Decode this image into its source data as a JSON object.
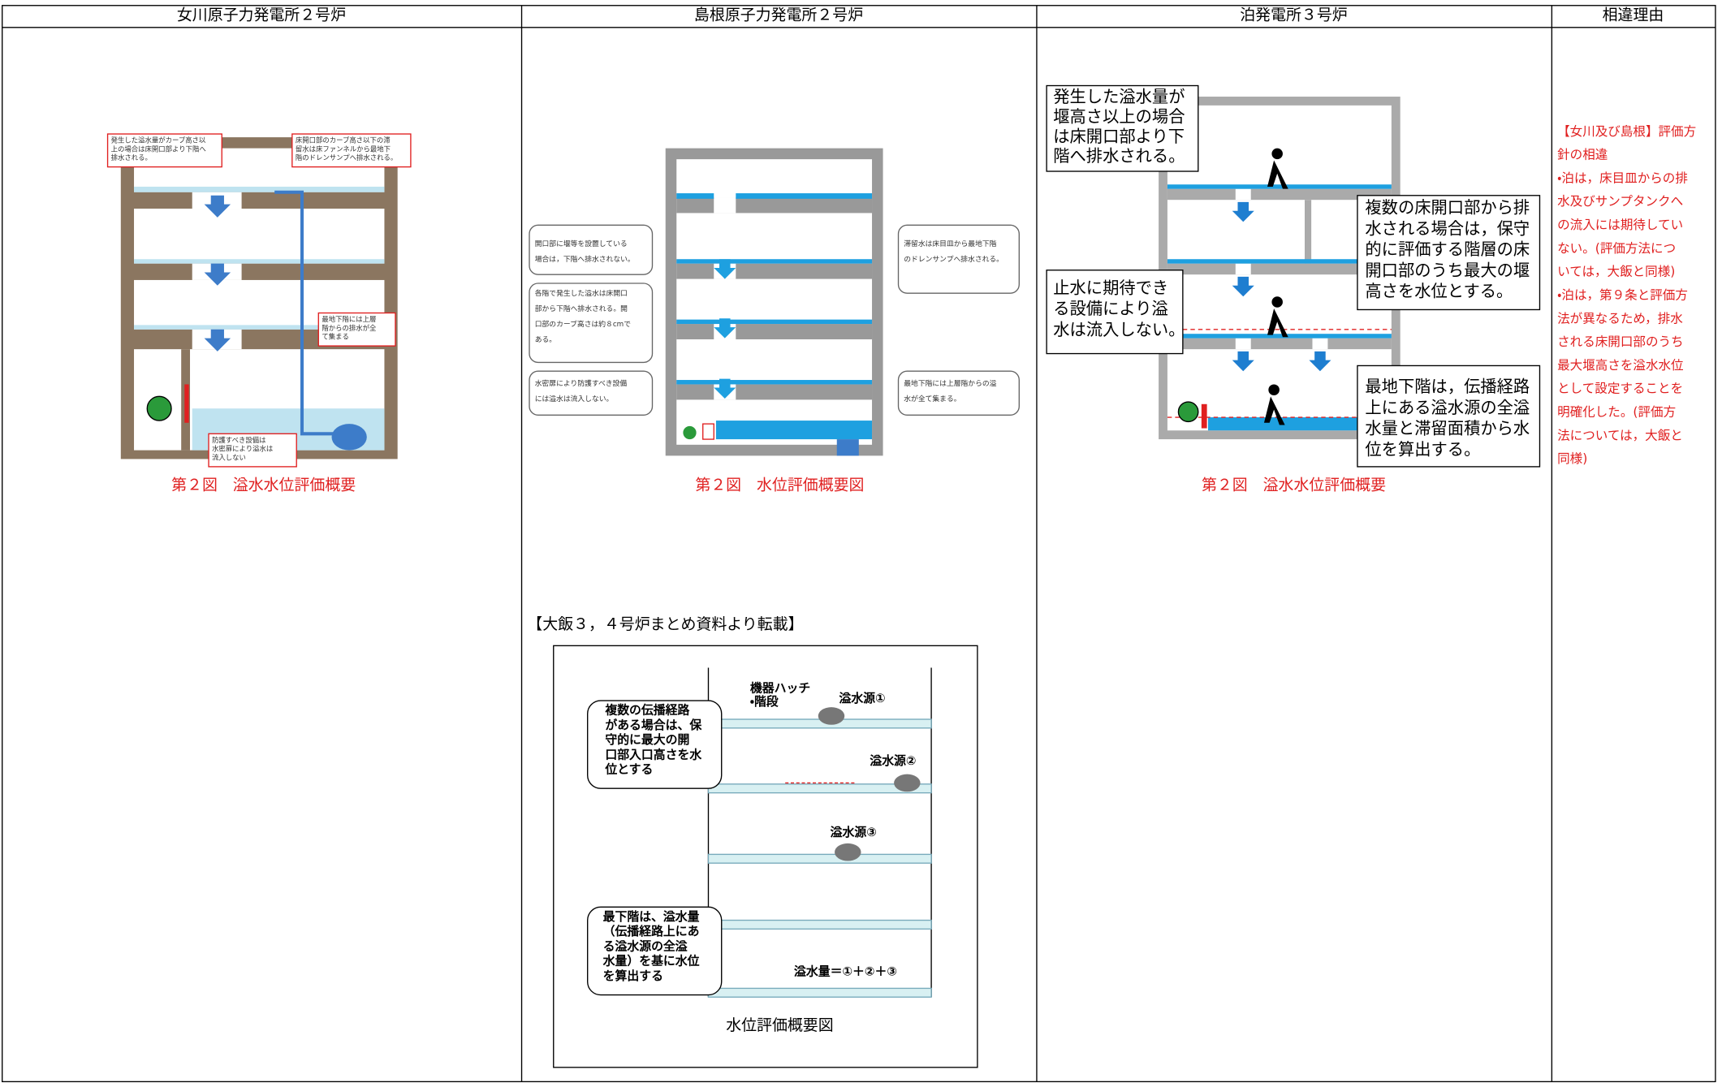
{
  "table": {
    "headers": [
      "女川原子力発電所２号炉",
      "島根原子力発電所２号炉",
      "泊発電所３号炉",
      "相違理由"
    ]
  },
  "onagawa": {
    "callouts": [
      [
        "発生した溢水量がカーブ高さ以",
        "上の場合は床開口部より下階へ",
        "排水される。"
      ],
      [
        "床開口部のカーブ高さ以下の滞",
        "留水は床ファンネルから最地下",
        "階のドレンサンプへ排水される。"
      ],
      [
        "最地下階には上層",
        "階からの排水が全",
        "て集まる"
      ],
      [
        "防護すべき設備は",
        "水密扉により溢水は",
        "流入しない"
      ]
    ],
    "caption": "第２図　溢水水位評価概要"
  },
  "shimane": {
    "callouts": [
      [
        "開口部に堰等を設置している",
        "場合は，下階へ排水されない。"
      ],
      [
        "各階で発生した溢水は床開口",
        "部から下階へ排水される。開",
        "口部のカーブ高さは約８cmで",
        "ある。"
      ],
      [
        "水密扉により防護すべき設備",
        "には溢水は流入しない。"
      ],
      [
        "滞留水は床目皿から最地下階",
        "のドレンサンプへ排水される。"
      ],
      [
        "最地下階には上層階からの溢",
        "水が全て集まる。"
      ]
    ],
    "caption": "第２図　水位評価概要図",
    "reference_heading": "【大飯３，４号炉まとめ資料より転載】",
    "reference": {
      "callouts": [
        [
          "複数の伝播経路",
          "がある場合は、保",
          "守的に最大の開",
          "口部入口高さを水",
          "位とする"
        ],
        [
          "最下階は、溢水量",
          "（伝播経路上にあ",
          "る溢水源の全溢",
          "水量）を基に水位",
          "を算出する"
        ]
      ],
      "labels": [
        "機器ハッチ",
        "・階段",
        "溢水源①",
        "溢水源②",
        "溢水源③",
        "溢水量＝①＋②＋③"
      ],
      "caption": "水位評価概要図"
    }
  },
  "tomari": {
    "callouts": [
      [
        "発生した溢水量が",
        "堰高さ以上の場合",
        "は床開口部より下",
        "階へ排水される。"
      ],
      [
        "複数の床開口部から排",
        "水される場合は，保守",
        "的に評価する階層の床",
        "開口部のうち最大の堰",
        "高さを水位とする。"
      ],
      [
        "止水に期待でき",
        "る設備により溢",
        "水は流入しない。"
      ],
      [
        "最地下階は，伝播経路",
        "上にある溢水源の全溢",
        "水量と滞留面積から水",
        "位を算出する。"
      ]
    ],
    "caption": "第２図　溢水水位評価概要"
  },
  "reason": {
    "lines": [
      "【女川及び島根】評価方",
      "針の相違",
      "・泊は，床目皿からの排",
      "水及びサンプタンクへ",
      "の流入には期待してい",
      "ない。(評価方法につ",
      "いては，大飯と同様)",
      "・泊は，第９条と評価方",
      "法が異なるため，排水",
      "される床開口部のうち",
      "最大堰高さを溢水水位",
      "として設定することを",
      "明確化した。(評価方",
      "法については，大飯と",
      "同様)"
    ]
  }
}
